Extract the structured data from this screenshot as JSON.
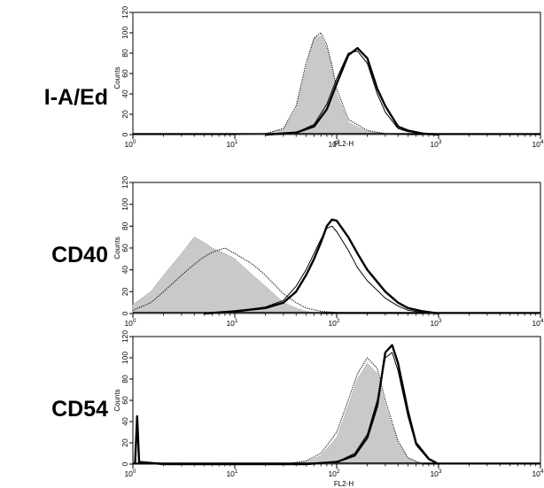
{
  "chart_data": [
    {
      "type": "line",
      "marker": "I-A/Ed",
      "xlabel": "FL2-H",
      "ylabel": "Counts",
      "xscale": "log",
      "xlim": [
        1,
        10000
      ],
      "ylim": [
        0,
        120
      ],
      "x_ticks": [
        {
          "base": "10",
          "exp": "0"
        },
        {
          "base": "10",
          "exp": "1"
        },
        {
          "base": "10",
          "exp": "2"
        },
        {
          "base": "10",
          "exp": "3"
        },
        {
          "base": "10",
          "exp": "4"
        }
      ],
      "y_ticks": [
        "0",
        "20",
        "40",
        "60",
        "80",
        "100",
        "120"
      ],
      "grid": false,
      "series": [
        {
          "style": "filled-gray",
          "x": [
            10,
            20,
            30,
            40,
            50,
            60,
            70,
            80,
            90,
            100,
            130,
            200,
            300,
            500
          ],
          "y": [
            0,
            1,
            5,
            25,
            65,
            95,
            97,
            85,
            65,
            40,
            12,
            3,
            1,
            0
          ]
        },
        {
          "style": "dotted",
          "x": [
            10,
            20,
            30,
            40,
            50,
            60,
            70,
            80,
            90,
            100,
            130,
            200,
            300,
            500
          ],
          "y": [
            0,
            1,
            6,
            28,
            70,
            95,
            100,
            88,
            68,
            45,
            15,
            4,
            1,
            0
          ]
        },
        {
          "style": "thick",
          "x": [
            20,
            40,
            60,
            80,
            100,
            130,
            160,
            200,
            250,
            300,
            400,
            500,
            700,
            1000
          ],
          "y": [
            0,
            2,
            8,
            25,
            50,
            78,
            85,
            75,
            45,
            28,
            8,
            4,
            1,
            0
          ]
        },
        {
          "style": "thin",
          "x": [
            20,
            40,
            60,
            80,
            100,
            130,
            160,
            200,
            250,
            300,
            400,
            500,
            700,
            1000
          ],
          "y": [
            0,
            2,
            10,
            30,
            55,
            80,
            82,
            70,
            40,
            22,
            6,
            3,
            1,
            0
          ]
        }
      ]
    },
    {
      "type": "line",
      "marker": "CD40",
      "xlabel": "",
      "ylabel": "Counts",
      "xscale": "log",
      "xlim": [
        1,
        10000
      ],
      "ylim": [
        0,
        120
      ],
      "x_ticks": [
        {
          "base": "10",
          "exp": "0"
        },
        {
          "base": "10",
          "exp": "1"
        },
        {
          "base": "10",
          "exp": "2"
        },
        {
          "base": "10",
          "exp": "3"
        },
        {
          "base": "10",
          "exp": "4"
        }
      ],
      "y_ticks": [
        "0",
        "20",
        "40",
        "60",
        "80",
        "100",
        "120"
      ],
      "grid": false,
      "series": [
        {
          "style": "filled-gray",
          "x": [
            1,
            1.5,
            2,
            3,
            4,
            5,
            6,
            8,
            10,
            15,
            20,
            30,
            40,
            50,
            70
          ],
          "y": [
            8,
            20,
            35,
            55,
            70,
            65,
            60,
            55,
            50,
            35,
            25,
            10,
            5,
            2,
            0
          ]
        },
        {
          "style": "dotted",
          "x": [
            1,
            1.5,
            2,
            3,
            4,
            5,
            6,
            8,
            10,
            15,
            20,
            30,
            40,
            50,
            70,
            100,
            150
          ],
          "y": [
            3,
            10,
            20,
            35,
            45,
            52,
            56,
            60,
            55,
            45,
            35,
            18,
            10,
            5,
            2,
            1,
            0
          ]
        },
        {
          "style": "thick",
          "x": [
            5,
            10,
            20,
            30,
            40,
            50,
            60,
            70,
            80,
            90,
            100,
            130,
            160,
            200,
            300,
            400,
            500,
            700,
            1000
          ],
          "y": [
            0,
            2,
            5,
            10,
            20,
            35,
            50,
            65,
            80,
            86,
            85,
            70,
            55,
            40,
            20,
            10,
            5,
            2,
            0
          ]
        },
        {
          "style": "thin",
          "x": [
            5,
            10,
            20,
            30,
            40,
            50,
            60,
            70,
            80,
            90,
            100,
            130,
            160,
            200,
            300,
            400,
            500,
            700,
            1000
          ],
          "y": [
            0,
            2,
            6,
            12,
            25,
            40,
            55,
            68,
            78,
            80,
            75,
            58,
            42,
            30,
            14,
            7,
            3,
            1,
            0
          ]
        }
      ]
    },
    {
      "type": "line",
      "marker": "CD54",
      "xlabel": "FL2-H",
      "ylabel": "Counts",
      "xscale": "log",
      "xlim": [
        1,
        10000
      ],
      "ylim": [
        0,
        120
      ],
      "x_ticks": [
        {
          "base": "10",
          "exp": "0"
        },
        {
          "base": "10",
          "exp": "1"
        },
        {
          "base": "10",
          "exp": "2"
        },
        {
          "base": "10",
          "exp": "3"
        },
        {
          "base": "10",
          "exp": "4"
        }
      ],
      "y_ticks": [
        "0",
        "20",
        "40",
        "60",
        "80",
        "100",
        "120"
      ],
      "grid": false,
      "series": [
        {
          "style": "filled-gray",
          "x": [
            30,
            50,
            70,
            100,
            130,
            160,
            200,
            250,
            300,
            400,
            500,
            700
          ],
          "y": [
            0,
            2,
            8,
            25,
            55,
            80,
            95,
            85,
            55,
            20,
            5,
            0
          ]
        },
        {
          "style": "dotted",
          "x": [
            30,
            50,
            70,
            100,
            130,
            160,
            200,
            250,
            300,
            400,
            500,
            700
          ],
          "y": [
            0,
            3,
            10,
            30,
            60,
            85,
            100,
            90,
            60,
            22,
            6,
            0
          ]
        },
        {
          "style": "thick",
          "x": [
            1.05,
            1.1,
            1.15,
            2,
            10,
            50,
            100,
            150,
            200,
            250,
            300,
            350,
            400,
            500,
            600,
            800,
            1000
          ],
          "y": [
            0,
            45,
            2,
            0,
            0,
            0,
            2,
            8,
            25,
            55,
            105,
            112,
            95,
            50,
            20,
            5,
            0
          ]
        },
        {
          "style": "thin",
          "x": [
            1.05,
            1.1,
            1.15,
            2,
            10,
            50,
            100,
            150,
            200,
            250,
            300,
            350,
            400,
            500,
            600,
            800,
            1000
          ],
          "y": [
            0,
            40,
            2,
            0,
            0,
            0,
            2,
            10,
            28,
            60,
            100,
            105,
            88,
            45,
            18,
            4,
            0
          ]
        }
      ]
    }
  ]
}
